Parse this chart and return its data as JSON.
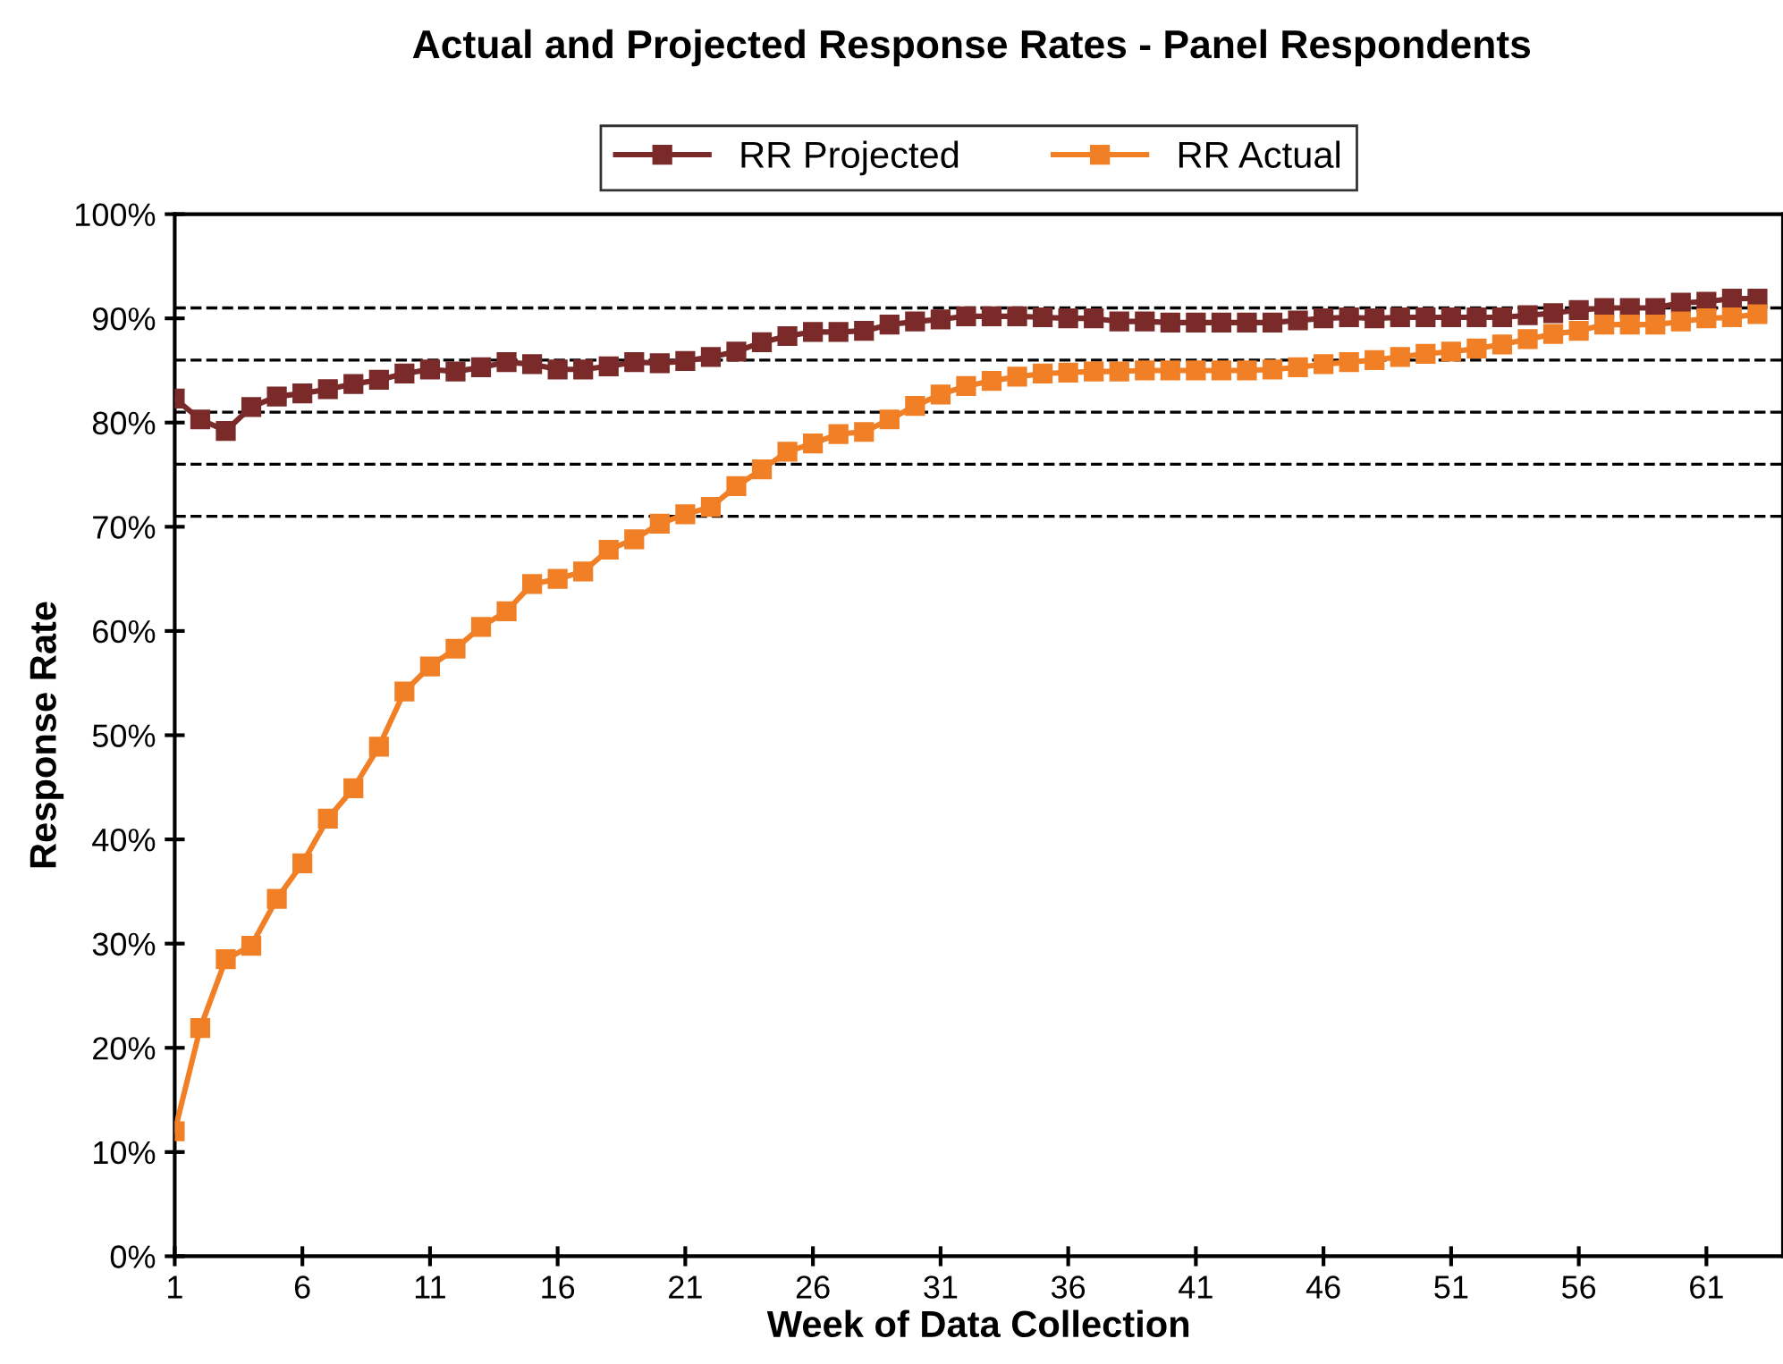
{
  "chart_data": {
    "type": "line",
    "title": "Actual and Projected Response Rates - Panel Respondents",
    "xlabel": "Week of Data Collection",
    "ylabel": "Response Rate",
    "x": [
      1,
      2,
      3,
      4,
      5,
      6,
      7,
      8,
      9,
      10,
      11,
      12,
      13,
      14,
      15,
      16,
      17,
      18,
      19,
      20,
      21,
      22,
      23,
      24,
      25,
      26,
      27,
      28,
      29,
      30,
      31,
      32,
      33,
      34,
      35,
      36,
      37,
      38,
      39,
      40,
      41,
      42,
      43,
      44,
      45,
      46,
      47,
      48,
      49,
      50,
      51,
      52,
      53,
      54,
      55,
      56,
      57,
      58,
      59,
      60,
      61,
      62,
      63
    ],
    "series": [
      {
        "name": "RR Projected",
        "color": "#7b2a2a",
        "values": [
          82.3,
          80.3,
          79.2,
          81.5,
          82.5,
          82.8,
          83.2,
          83.7,
          84.1,
          84.7,
          85.1,
          84.9,
          85.3,
          85.8,
          85.6,
          85.1,
          85.1,
          85.4,
          85.8,
          85.7,
          85.9,
          86.3,
          86.8,
          87.7,
          88.3,
          88.7,
          88.7,
          88.8,
          89.4,
          89.7,
          89.9,
          90.2,
          90.2,
          90.2,
          90.1,
          90.0,
          90.0,
          89.7,
          89.7,
          89.6,
          89.6,
          89.6,
          89.6,
          89.6,
          89.8,
          90.0,
          90.1,
          90.0,
          90.1,
          90.1,
          90.1,
          90.1,
          90.1,
          90.3,
          90.5,
          90.8,
          91.0,
          91.0,
          91.0,
          91.5,
          91.6,
          91.9,
          91.9
        ]
      },
      {
        "name": "RR Actual",
        "color": "#f07f26",
        "values": [
          12.0,
          21.9,
          28.5,
          29.8,
          34.3,
          37.7,
          42.0,
          44.9,
          48.9,
          54.2,
          56.6,
          58.3,
          60.4,
          61.9,
          64.5,
          65.0,
          65.7,
          67.8,
          68.8,
          70.3,
          71.2,
          71.9,
          73.9,
          75.5,
          77.2,
          78.0,
          78.9,
          79.1,
          80.3,
          81.6,
          82.7,
          83.5,
          84.0,
          84.4,
          84.7,
          84.8,
          84.9,
          84.9,
          85.0,
          85.0,
          85.0,
          85.0,
          85.0,
          85.1,
          85.3,
          85.6,
          85.8,
          86.0,
          86.3,
          86.6,
          86.8,
          87.1,
          87.5,
          88.0,
          88.5,
          88.8,
          89.4,
          89.4,
          89.4,
          89.7,
          90.0,
          90.1,
          90.4
        ]
      }
    ],
    "marker": "square",
    "line_style": "solid",
    "legend": "top",
    "grid": false,
    "xlim": [
      1,
      64
    ],
    "xticks": [
      1,
      6,
      11,
      16,
      21,
      26,
      31,
      36,
      41,
      46,
      51,
      56,
      61
    ],
    "ylim": [
      0,
      100
    ],
    "yticks": [
      {
        "value": 0,
        "label": "0%"
      },
      {
        "value": 10,
        "label": "10%"
      },
      {
        "value": 20,
        "label": "20%"
      },
      {
        "value": 30,
        "label": "30%"
      },
      {
        "value": 40,
        "label": "40%"
      },
      {
        "value": 50,
        "label": "50%"
      },
      {
        "value": 60,
        "label": "60%"
      },
      {
        "value": 70,
        "label": "70%"
      },
      {
        "value": 80,
        "label": "80%"
      },
      {
        "value": 90,
        "label": "90%"
      },
      {
        "value": 100,
        "label": "100%"
      }
    ],
    "ref_lines": [
      {
        "axis": "y",
        "value": 91,
        "color": "#000000",
        "line_style": "dashed"
      },
      {
        "axis": "y",
        "value": 86,
        "color": "#000000",
        "line_style": "dashed"
      },
      {
        "axis": "y",
        "value": 81,
        "color": "#000000",
        "line_style": "dashed"
      },
      {
        "axis": "y",
        "value": 76,
        "color": "#000000",
        "line_style": "dashed"
      },
      {
        "axis": "y",
        "value": 71,
        "color": "#000000",
        "line_style": "dashed"
      }
    ]
  }
}
